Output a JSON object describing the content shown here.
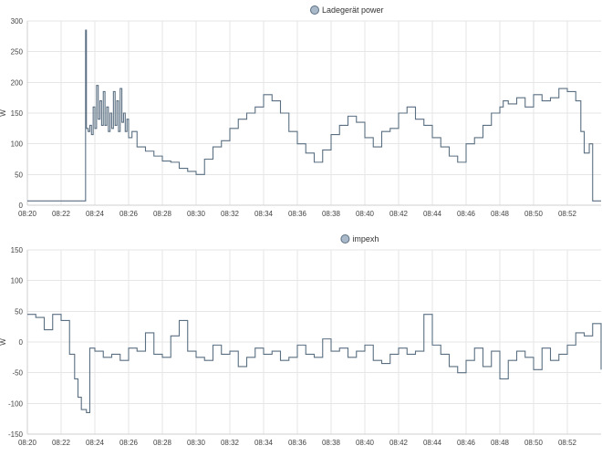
{
  "chart_data": [
    {
      "type": "line",
      "legend": "Ladegerät power",
      "legend_placement": "top-center",
      "ylabel": "W",
      "xlabel": "",
      "ylim": [
        0,
        300
      ],
      "yticks": [
        "0",
        "50",
        "100",
        "150",
        "200",
        "250",
        "300"
      ],
      "xticks": [
        "08:20",
        "08:22",
        "08:24",
        "08:26",
        "08:28",
        "08:30",
        "08:32",
        "08:34",
        "08:36",
        "08:38",
        "08:40",
        "08:42",
        "08:44",
        "08:46",
        "08:48",
        "08:50",
        "08:52"
      ],
      "xlim_minutes": [
        0,
        34
      ],
      "grid": true,
      "color": "#5a6f82",
      "series": [
        {
          "x": [
            0,
            1,
            2,
            3,
            3.4,
            3.45,
            3.5,
            3.6,
            3.7,
            3.8,
            3.9,
            4,
            4.1,
            4.2,
            4.3,
            4.4,
            4.5,
            4.6,
            4.7,
            4.8,
            4.9,
            5,
            5.1,
            5.2,
            5.3,
            5.4,
            5.5,
            5.6,
            5.7,
            5.8,
            5.9,
            6,
            6.2,
            6.5,
            7,
            7.5,
            8,
            8.5,
            9,
            9.5,
            10,
            10.5,
            11,
            11.5,
            12,
            12.5,
            13,
            13.5,
            14,
            14.5,
            15,
            15.5,
            16,
            16.5,
            17,
            17.5,
            18,
            18.5,
            19,
            19.5,
            20,
            20.5,
            21,
            21.5,
            22,
            22.5,
            23,
            23.5,
            24,
            24.5,
            25,
            25.5,
            26,
            26.5,
            27,
            27.5,
            28,
            28.2,
            28.5,
            29,
            29.5,
            30,
            30.5,
            31,
            31.5,
            32,
            32.5,
            32.8,
            33,
            33.3,
            33.5,
            34
          ],
          "y": [
            7,
            7,
            7,
            7,
            7,
            285,
            125,
            120,
            130,
            115,
            160,
            125,
            195,
            140,
            170,
            130,
            185,
            130,
            160,
            120,
            150,
            125,
            185,
            130,
            170,
            120,
            190,
            135,
            150,
            120,
            140,
            110,
            120,
            95,
            88,
            80,
            72,
            70,
            60,
            55,
            50,
            75,
            95,
            105,
            125,
            140,
            150,
            160,
            180,
            170,
            150,
            120,
            100,
            85,
            70,
            90,
            115,
            130,
            145,
            135,
            110,
            95,
            120,
            125,
            150,
            160,
            140,
            130,
            110,
            95,
            80,
            70,
            100,
            110,
            130,
            150,
            160,
            170,
            165,
            175,
            160,
            180,
            170,
            175,
            190,
            185,
            170,
            120,
            85,
            100,
            7,
            7
          ]
        }
      ]
    },
    {
      "type": "line",
      "legend": "impexh",
      "legend_placement": "top-center",
      "ylabel": "W",
      "xlabel": "",
      "ylim": [
        -150,
        150
      ],
      "yticks": [
        "-150",
        "-100",
        "-50",
        "0",
        "50",
        "100",
        "150"
      ],
      "xticks": [
        "08:20",
        "08:22",
        "08:24",
        "08:26",
        "08:28",
        "08:30",
        "08:32",
        "08:34",
        "08:36",
        "08:38",
        "08:40",
        "08:42",
        "08:44",
        "08:46",
        "08:48",
        "08:50",
        "08:52"
      ],
      "xlim_minutes": [
        0,
        34
      ],
      "grid": true,
      "color": "#5a6f82",
      "series": [
        {
          "x": [
            0,
            0.5,
            1,
            1.5,
            2,
            2.5,
            2.8,
            3,
            3.2,
            3.5,
            3.7,
            4,
            4.5,
            5,
            5.5,
            6,
            6.5,
            7,
            7.5,
            8,
            8.5,
            9,
            9.5,
            10,
            10.5,
            11,
            11.5,
            12,
            12.5,
            13,
            13.5,
            14,
            14.5,
            15,
            15.5,
            16,
            16.5,
            17,
            17.5,
            18,
            18.5,
            19,
            19.5,
            20,
            20.5,
            21,
            21.5,
            22,
            22.5,
            23,
            23.5,
            24,
            24.5,
            25,
            25.5,
            26,
            26.5,
            27,
            27.5,
            28,
            28.5,
            29,
            29.5,
            30,
            30.5,
            31,
            31.5,
            32,
            32.5,
            33,
            33.5,
            34
          ],
          "y": [
            45,
            40,
            20,
            45,
            35,
            -20,
            -60,
            -90,
            -110,
            -115,
            -10,
            -15,
            -25,
            -20,
            -30,
            -10,
            -15,
            15,
            -20,
            -25,
            10,
            35,
            -15,
            -25,
            -30,
            -5,
            -20,
            -15,
            -40,
            -25,
            -10,
            -20,
            -15,
            -30,
            -25,
            -5,
            -20,
            -25,
            5,
            -15,
            -10,
            -25,
            -15,
            -5,
            -30,
            -35,
            -20,
            -10,
            -20,
            -15,
            45,
            -5,
            -20,
            -40,
            -50,
            -30,
            -10,
            -40,
            -15,
            -60,
            -30,
            -15,
            -25,
            -45,
            -10,
            -30,
            -20,
            -5,
            15,
            10,
            30,
            -45
          ]
        }
      ]
    }
  ]
}
